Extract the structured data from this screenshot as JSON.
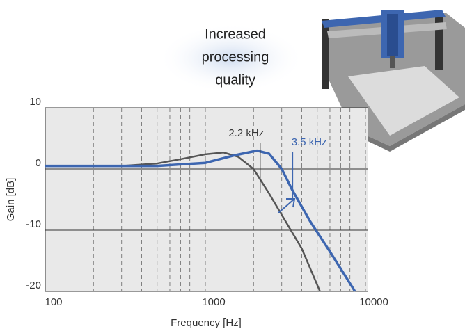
{
  "chart_data": {
    "type": "line",
    "headline": [
      "Increased",
      "processing",
      "quality"
    ],
    "xlabel": "Frequency [Hz]",
    "ylabel": "Gain [dB]",
    "log_x": true,
    "xlim": [
      100,
      10000
    ],
    "xticks": [
      100,
      1000,
      10000
    ],
    "xminorticks": [
      200,
      300,
      400,
      500,
      600,
      700,
      800,
      900,
      2000,
      3000,
      4000,
      5000,
      6000,
      7000,
      8000,
      9000
    ],
    "ylim": [
      -20,
      10
    ],
    "yticks": [
      -20,
      -10,
      0,
      10
    ],
    "series": [
      {
        "color": "#555555",
        "x": [
          100,
          300,
          500,
          700,
          1000,
          1300,
          1600,
          2000,
          2500,
          3000,
          4000,
          5200
        ],
        "values": [
          0.5,
          0.5,
          0.9,
          1.6,
          2.4,
          2.7,
          2,
          0,
          -4,
          -7.5,
          -13,
          -20
        ]
      },
      {
        "color": "#3d66b0",
        "x": [
          100,
          500,
          1000,
          1500,
          2100,
          2500,
          3000,
          3500,
          4500,
          6000,
          8600
        ],
        "values": [
          0.5,
          0.5,
          1,
          2.2,
          3,
          2.5,
          0,
          -3.5,
          -8.5,
          -13.5,
          -20
        ]
      }
    ],
    "annotations": [
      {
        "text": "2.2 kHz",
        "x": 2200,
        "color": "#333333"
      },
      {
        "text": "3.5 kHz",
        "x": 3500,
        "color": "#3d66b0"
      }
    ]
  }
}
